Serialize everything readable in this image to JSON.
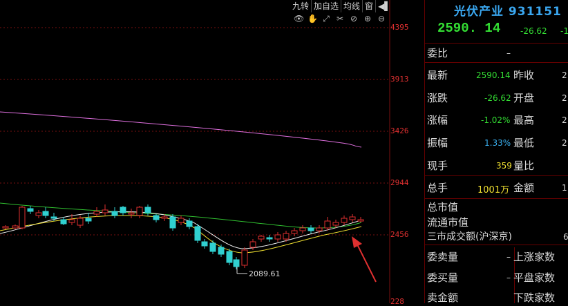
{
  "toolbar": {
    "items": [
      "九转",
      "加自选",
      "均线",
      "窗"
    ]
  },
  "tools": [
    "👁",
    "✋",
    "⤢",
    "✂",
    "⊘",
    "⊕",
    "⊖"
  ],
  "yaxis": {
    "labels": [
      "4395",
      "3913",
      "3426",
      "2944",
      "2456",
      "228"
    ]
  },
  "chart": {
    "low_label": "2089.61"
  },
  "quote": {
    "title": "光伏产业 931151",
    "price": "2590. 14",
    "change": "-26.62",
    "change_pct_cut": "-1",
    "weibi_label": "委比",
    "weibi_value": "–",
    "latest_label": "最新",
    "latest_value": "2590.14",
    "prevclose_label": "昨收",
    "prevclose_value": "2",
    "updown_label": "涨跌",
    "updown_value": "-26.62",
    "open_label": "开盘",
    "open_value": "2",
    "pct_label": "涨幅",
    "pct_value": "-1.02%",
    "high_label": "最高",
    "high_value": "2",
    "amp_label": "振幅",
    "amp_value": "1.33%",
    "low_label": "最低",
    "low_value": "2",
    "cur_label": "现手",
    "cur_value": "359",
    "volratio_label": "量比",
    "total_label": "总手",
    "total_value": "1001万",
    "amount_label": "金额",
    "amount_value": "1",
    "mktcap_label": "总市值",
    "floatcap_label": "流通市值",
    "turnover_label": "三市成交额(沪深京)",
    "turnover_value": "6",
    "sell_label": "委卖量",
    "sell_value": "–",
    "buy_label": "委买量",
    "buy_value": "–",
    "sellamt_label": "卖金额",
    "up_label": "上涨家数",
    "flat_label": "平盘家数",
    "down_label": "下跌家数"
  },
  "colors": {
    "up": "#e03030",
    "down": "#30d0d0",
    "ma1": "#f0f0f0",
    "ma2": "#f0e030",
    "ma3": "#30c030",
    "ma4": "#e070e0",
    "arrow": "#e03030"
  }
}
